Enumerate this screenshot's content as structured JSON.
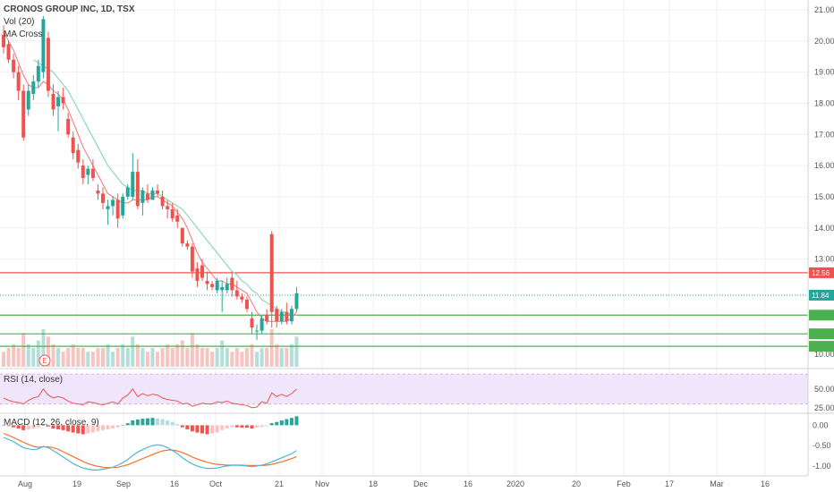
{
  "header": {
    "symbol_line": "CRONOS GROUP INC, 1D, TSX",
    "vol_label": "Vol (20)",
    "ma_label": "MA Cross",
    "rsi_label": "RSI (14, close)",
    "macd_label": "MACD (12, 26, close, 9)",
    "earnings_marker": "E"
  },
  "colors": {
    "up": "#26a69a",
    "down": "#ef5350",
    "vol_up": "#b2dfdb",
    "vol_down": "#f8c4c2",
    "ma_fast": "#ef5350",
    "ma_slow": "#8fd6b9",
    "rsi_band": "#f0e6fb",
    "rsi_line": "#ef5350",
    "macd_line": "#4db6d6",
    "signal_line": "#f4742b",
    "resistance": "#ef5350",
    "support": "#4caf50"
  },
  "chart_data": [
    {
      "type": "candlestick",
      "x_ticks": [
        "Aug",
        "19",
        "Sep",
        "16",
        "Oct",
        "21",
        "Nov",
        "18",
        "Dec",
        "16",
        "2020",
        "20",
        "Feb",
        "17",
        "Mar",
        "16"
      ],
      "y_ticks": [
        "21.00",
        "20.00",
        "19.00",
        "18.00",
        "17.00",
        "16.00",
        "15.00",
        "14.00",
        "13.00",
        "10.00"
      ],
      "ylim": [
        9.6,
        21.2
      ],
      "candles": [
        {
          "o": 20.2,
          "h": 20.5,
          "l": 19.6,
          "c": 19.8
        },
        {
          "o": 19.9,
          "h": 20.0,
          "l": 19.3,
          "c": 19.4
        },
        {
          "o": 19.4,
          "h": 19.6,
          "l": 18.8,
          "c": 19.0
        },
        {
          "o": 19.0,
          "h": 19.2,
          "l": 18.1,
          "c": 18.4
        },
        {
          "o": 18.4,
          "h": 18.6,
          "l": 16.8,
          "c": 16.9
        },
        {
          "o": 17.8,
          "h": 18.6,
          "l": 17.6,
          "c": 18.4
        },
        {
          "o": 18.3,
          "h": 18.9,
          "l": 18.1,
          "c": 18.7
        },
        {
          "o": 18.7,
          "h": 19.4,
          "l": 18.5,
          "c": 19.2
        },
        {
          "o": 19.0,
          "h": 20.8,
          "l": 18.8,
          "c": 20.7
        },
        {
          "o": 20.1,
          "h": 20.3,
          "l": 18.2,
          "c": 18.4
        },
        {
          "o": 18.3,
          "h": 18.6,
          "l": 17.6,
          "c": 17.8
        },
        {
          "o": 17.9,
          "h": 18.4,
          "l": 17.1,
          "c": 18.2
        },
        {
          "o": 18.2,
          "h": 18.5,
          "l": 17.8,
          "c": 18.0
        },
        {
          "o": 17.5,
          "h": 17.7,
          "l": 16.9,
          "c": 17.0
        },
        {
          "o": 16.9,
          "h": 17.1,
          "l": 16.2,
          "c": 16.4
        },
        {
          "o": 16.5,
          "h": 16.7,
          "l": 15.9,
          "c": 16.1
        },
        {
          "o": 16.0,
          "h": 16.2,
          "l": 15.4,
          "c": 15.6
        },
        {
          "o": 15.7,
          "h": 16.0,
          "l": 15.4,
          "c": 15.9
        },
        {
          "o": 15.9,
          "h": 16.2,
          "l": 15.5,
          "c": 15.6
        },
        {
          "o": 15.2,
          "h": 15.4,
          "l": 14.9,
          "c": 15.1
        },
        {
          "o": 15.1,
          "h": 15.3,
          "l": 14.6,
          "c": 14.8
        },
        {
          "o": 14.6,
          "h": 14.9,
          "l": 14.1,
          "c": 14.7
        },
        {
          "o": 14.7,
          "h": 15.0,
          "l": 14.4,
          "c": 14.9
        },
        {
          "o": 14.9,
          "h": 15.1,
          "l": 14.0,
          "c": 14.3
        },
        {
          "o": 14.4,
          "h": 15.1,
          "l": 14.3,
          "c": 15.0
        },
        {
          "o": 15.0,
          "h": 15.4,
          "l": 14.9,
          "c": 15.3
        },
        {
          "o": 15.0,
          "h": 16.4,
          "l": 14.9,
          "c": 15.8
        },
        {
          "o": 15.8,
          "h": 16.2,
          "l": 14.6,
          "c": 14.7
        },
        {
          "o": 14.8,
          "h": 15.3,
          "l": 14.4,
          "c": 15.2
        },
        {
          "o": 15.1,
          "h": 15.4,
          "l": 14.8,
          "c": 14.9
        },
        {
          "o": 14.9,
          "h": 15.3,
          "l": 14.9,
          "c": 15.2
        },
        {
          "o": 15.2,
          "h": 15.4,
          "l": 15.0,
          "c": 15.1
        },
        {
          "o": 15.0,
          "h": 15.2,
          "l": 14.6,
          "c": 14.7
        },
        {
          "o": 14.7,
          "h": 14.9,
          "l": 14.3,
          "c": 14.6
        },
        {
          "o": 14.6,
          "h": 14.8,
          "l": 14.2,
          "c": 14.3
        },
        {
          "o": 14.4,
          "h": 14.6,
          "l": 14.0,
          "c": 14.2
        },
        {
          "o": 14.0,
          "h": 14.0,
          "l": 13.4,
          "c": 13.5
        },
        {
          "o": 13.5,
          "h": 13.6,
          "l": 13.3,
          "c": 13.4
        },
        {
          "o": 13.4,
          "h": 13.5,
          "l": 12.4,
          "c": 12.6
        },
        {
          "o": 12.7,
          "h": 12.9,
          "l": 12.1,
          "c": 12.3
        },
        {
          "o": 12.8,
          "h": 13.0,
          "l": 12.3,
          "c": 12.4
        },
        {
          "o": 12.3,
          "h": 12.6,
          "l": 12.0,
          "c": 12.2
        },
        {
          "o": 12.2,
          "h": 12.3,
          "l": 12.0,
          "c": 12.1
        },
        {
          "o": 12.0,
          "h": 12.4,
          "l": 11.9,
          "c": 12.3
        },
        {
          "o": 12.0,
          "h": 12.3,
          "l": 11.3,
          "c": 12.1
        },
        {
          "o": 12.0,
          "h": 12.4,
          "l": 11.9,
          "c": 12.2
        },
        {
          "o": 12.4,
          "h": 12.6,
          "l": 11.8,
          "c": 12.0
        },
        {
          "o": 12.0,
          "h": 12.3,
          "l": 11.7,
          "c": 11.8
        },
        {
          "o": 11.8,
          "h": 11.9,
          "l": 11.6,
          "c": 11.7
        },
        {
          "o": 11.7,
          "h": 11.8,
          "l": 11.3,
          "c": 11.4
        },
        {
          "o": 11.1,
          "h": 11.3,
          "l": 10.6,
          "c": 10.8
        },
        {
          "o": 10.7,
          "h": 10.9,
          "l": 10.4,
          "c": 10.7
        },
        {
          "o": 10.7,
          "h": 11.2,
          "l": 10.6,
          "c": 11.1
        },
        {
          "o": 11.2,
          "h": 11.4,
          "l": 10.9,
          "c": 11.0
        },
        {
          "o": 13.8,
          "h": 13.9,
          "l": 10.8,
          "c": 11.3
        },
        {
          "o": 11.4,
          "h": 11.5,
          "l": 10.8,
          "c": 11.0
        },
        {
          "o": 11.0,
          "h": 11.4,
          "l": 10.9,
          "c": 11.3
        },
        {
          "o": 11.3,
          "h": 11.6,
          "l": 10.9,
          "c": 11.0
        },
        {
          "o": 11.0,
          "h": 11.5,
          "l": 10.9,
          "c": 11.4
        },
        {
          "o": 11.4,
          "h": 12.1,
          "l": 11.3,
          "c": 11.9
        }
      ],
      "ma_fast_values": [
        20.3,
        20.0,
        19.7,
        19.3,
        18.9,
        18.6,
        18.5,
        18.5,
        18.7,
        18.6,
        18.4,
        18.3,
        18.1,
        17.8,
        17.4,
        17.0,
        16.6,
        16.3,
        16.0,
        15.7,
        15.4,
        15.1,
        15.0,
        14.9,
        14.8,
        14.8,
        14.9,
        14.9,
        14.9,
        14.9,
        15.0,
        15.0,
        14.9,
        14.8,
        14.7,
        14.5,
        14.3,
        14.0,
        13.6,
        13.2,
        12.9,
        12.7,
        12.5,
        12.3,
        12.3,
        12.2,
        12.2,
        12.1,
        12.0,
        11.9,
        11.6,
        11.3,
        11.1,
        11.0,
        11.0,
        11.0,
        11.0,
        11.0,
        11.1,
        11.3
      ],
      "ma_slow_values": [
        null,
        null,
        null,
        null,
        null,
        null,
        19.4,
        19.3,
        19.2,
        19.1,
        19.0,
        18.8,
        18.6,
        18.4,
        18.1,
        17.8,
        17.5,
        17.2,
        16.9,
        16.6,
        16.3,
        16.0,
        15.8,
        15.6,
        15.4,
        15.3,
        15.2,
        15.2,
        15.2,
        15.1,
        15.1,
        15.1,
        15.0,
        14.9,
        14.8,
        14.7,
        14.6,
        14.4,
        14.2,
        14.0,
        13.8,
        13.6,
        13.4,
        13.2,
        13.0,
        12.8,
        12.6,
        12.5,
        12.3,
        12.2,
        12.0,
        11.9,
        11.7,
        11.6,
        11.5,
        11.4,
        11.3,
        11.3,
        11.2,
        11.2
      ],
      "volume_rel": [
        0.4,
        0.5,
        0.6,
        0.5,
        0.9,
        0.6,
        0.5,
        0.7,
        1.0,
        0.8,
        0.6,
        0.5,
        0.4,
        0.5,
        0.6,
        0.5,
        0.5,
        0.4,
        0.4,
        0.5,
        0.5,
        0.6,
        0.4,
        0.5,
        0.6,
        0.5,
        0.8,
        0.6,
        0.5,
        0.4,
        0.5,
        0.4,
        0.5,
        0.6,
        0.5,
        0.6,
        0.7,
        0.5,
        0.9,
        0.6,
        0.5,
        0.5,
        0.4,
        0.5,
        0.7,
        0.5,
        0.4,
        0.5,
        0.4,
        0.5,
        0.6,
        0.4,
        0.5,
        0.5,
        1.0,
        0.6,
        0.5,
        0.5,
        0.6,
        0.8
      ],
      "horizontal_levels": [
        {
          "value": 12.56,
          "label": "12.56",
          "kind": "resistance"
        },
        {
          "value": 11.84,
          "label": "11.84",
          "kind": "last"
        },
        {
          "value": 11.2,
          "label": "",
          "kind": "support"
        },
        {
          "value": 10.6,
          "label": "",
          "kind": "support"
        },
        {
          "value": 10.2,
          "label": "",
          "kind": "support"
        }
      ]
    },
    {
      "type": "line",
      "title": "RSI (14, close)",
      "y_ticks": [
        "50.00",
        "25.00"
      ],
      "ylim": [
        20,
        75
      ],
      "band": [
        30,
        70
      ],
      "values": [
        38,
        35,
        33,
        32,
        30,
        35,
        38,
        40,
        50,
        42,
        38,
        40,
        38,
        34,
        31,
        30,
        29,
        33,
        32,
        30,
        29,
        31,
        33,
        30,
        38,
        42,
        50,
        40,
        44,
        41,
        43,
        42,
        38,
        36,
        35,
        34,
        30,
        31,
        27,
        29,
        31,
        30,
        30,
        33,
        32,
        34,
        31,
        30,
        29,
        28,
        25,
        26,
        33,
        31,
        45,
        40,
        43,
        40,
        44,
        50
      ]
    },
    {
      "type": "bar",
      "title": "MACD (12, 26, close, 9)",
      "y_ticks": [
        "0.00",
        "-0.50",
        "-1.00"
      ],
      "ylim": [
        -1.2,
        0.25
      ],
      "histogram": [
        0.0,
        -0.02,
        -0.05,
        -0.08,
        -0.12,
        -0.1,
        -0.08,
        -0.05,
        0.0,
        -0.03,
        -0.08,
        -0.1,
        -0.12,
        -0.15,
        -0.18,
        -0.2,
        -0.22,
        -0.2,
        -0.18,
        -0.15,
        -0.12,
        -0.1,
        -0.08,
        -0.05,
        0.0,
        0.05,
        0.12,
        0.14,
        0.16,
        0.17,
        0.18,
        0.17,
        0.15,
        0.12,
        0.08,
        0.03,
        -0.05,
        -0.1,
        -0.15,
        -0.18,
        -0.2,
        -0.22,
        -0.2,
        -0.18,
        -0.12,
        -0.08,
        -0.05,
        -0.05,
        -0.06,
        -0.06,
        -0.08,
        -0.06,
        -0.04,
        -0.02,
        0.05,
        0.08,
        0.12,
        0.15,
        0.18,
        0.22
      ],
      "macd": [
        -0.3,
        -0.35,
        -0.4,
        -0.48,
        -0.55,
        -0.58,
        -0.6,
        -0.58,
        -0.52,
        -0.55,
        -0.62,
        -0.7,
        -0.78,
        -0.86,
        -0.94,
        -1.0,
        -1.05,
        -1.08,
        -1.1,
        -1.1,
        -1.08,
        -1.06,
        -1.03,
        -0.98,
        -0.92,
        -0.84,
        -0.74,
        -0.66,
        -0.6,
        -0.54,
        -0.5,
        -0.48,
        -0.5,
        -0.55,
        -0.62,
        -0.7,
        -0.8,
        -0.88,
        -0.95,
        -1.0,
        -1.04,
        -1.06,
        -1.06,
        -1.05,
        -1.02,
        -1.0,
        -0.98,
        -0.98,
        -0.99,
        -1.0,
        -1.02,
        -1.0,
        -0.98,
        -0.95,
        -0.9,
        -0.85,
        -0.8,
        -0.75,
        -0.7,
        -0.62
      ],
      "signal": [
        -0.2,
        -0.25,
        -0.3,
        -0.36,
        -0.42,
        -0.47,
        -0.52,
        -0.54,
        -0.53,
        -0.53,
        -0.55,
        -0.59,
        -0.65,
        -0.71,
        -0.77,
        -0.83,
        -0.89,
        -0.94,
        -0.98,
        -1.01,
        -1.03,
        -1.04,
        -1.04,
        -1.03,
        -1.0,
        -0.97,
        -0.92,
        -0.87,
        -0.82,
        -0.77,
        -0.72,
        -0.67,
        -0.63,
        -0.61,
        -0.61,
        -0.63,
        -0.67,
        -0.72,
        -0.78,
        -0.83,
        -0.87,
        -0.91,
        -0.94,
        -0.96,
        -0.97,
        -0.98,
        -0.98,
        -0.98,
        -0.98,
        -0.99,
        -0.99,
        -0.99,
        -0.99,
        -0.98,
        -0.96,
        -0.93,
        -0.9,
        -0.86,
        -0.82,
        -0.77
      ]
    }
  ]
}
